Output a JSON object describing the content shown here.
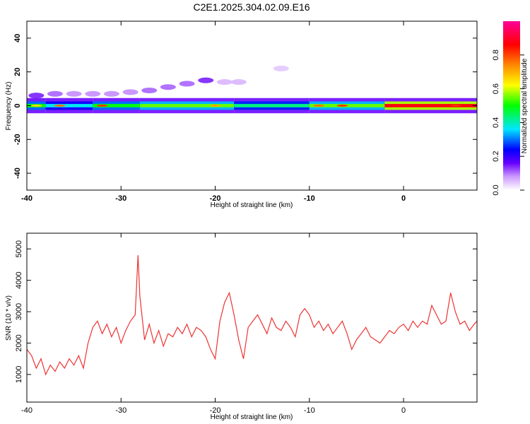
{
  "title": "C2E1.2025.304.02.09.E16",
  "chart_data": [
    {
      "type": "heatmap",
      "xlabel": "Height of straight line (km)",
      "ylabel": "Frequency (Hz)",
      "xlim": [
        -40,
        7.8
      ],
      "ylim": [
        -50,
        50
      ],
      "xticks": [
        -40,
        -30,
        -20,
        -10,
        0
      ],
      "yticks": [
        -40,
        -20,
        0,
        20,
        40
      ],
      "colorbar": {
        "label": "Normalized spectral amplitude",
        "range": [
          0,
          1
        ],
        "ticks": [
          0.0,
          0.2,
          0.4,
          0.6,
          0.8
        ],
        "colors": [
          "#ffffff",
          "#cc99ff",
          "#6600ff",
          "#0000ff",
          "#00e6ff",
          "#00ff00",
          "#ffff00",
          "#ff8800",
          "#ff0000",
          "#ff0099"
        ]
      },
      "band": {
        "center_frequency": 0,
        "segments": [
          {
            "x": [
              -40,
              -38
            ],
            "amplitude": 0.55
          },
          {
            "x": [
              -38,
              -33
            ],
            "amplitude": 0.45
          },
          {
            "x": [
              -33,
              -28
            ],
            "amplitude": 0.55
          },
          {
            "x": [
              -28,
              -18
            ],
            "amplitude": 0.6
          },
          {
            "x": [
              -18,
              -10
            ],
            "amplitude": 0.5
          },
          {
            "x": [
              -10,
              -2
            ],
            "amplitude": 0.6
          },
          {
            "x": [
              -2,
              7.8
            ],
            "amplitude": 0.9
          }
        ],
        "hotspots": [
          {
            "x": -39,
            "amplitude": 0.7
          },
          {
            "x": -36.5,
            "amplitude": 0.8
          },
          {
            "x": -32,
            "amplitude": 0.85
          },
          {
            "x": -20,
            "amplitude": 0.75
          },
          {
            "x": -9,
            "amplitude": 0.8
          },
          {
            "x": -6.5,
            "amplitude": 0.85
          },
          {
            "x": 5.5,
            "amplitude": 0.85
          }
        ]
      },
      "weak_features": [
        {
          "x": -39,
          "y": 6,
          "amplitude": 0.2
        },
        {
          "x": -37,
          "y": 7,
          "amplitude": 0.15
        },
        {
          "x": -35,
          "y": 7,
          "amplitude": 0.12
        },
        {
          "x": -33,
          "y": 7,
          "amplitude": 0.12
        },
        {
          "x": -31,
          "y": 7,
          "amplitude": 0.12
        },
        {
          "x": -29,
          "y": 8,
          "amplitude": 0.12
        },
        {
          "x": -27,
          "y": 9,
          "amplitude": 0.15
        },
        {
          "x": -25,
          "y": 11,
          "amplitude": 0.15
        },
        {
          "x": -23,
          "y": 13,
          "amplitude": 0.15
        },
        {
          "x": -21,
          "y": 15,
          "amplitude": 0.2
        },
        {
          "x": -19,
          "y": 14,
          "amplitude": 0.08
        },
        {
          "x": -17.5,
          "y": 14,
          "amplitude": 0.08
        },
        {
          "x": -13,
          "y": 22,
          "amplitude": 0.06
        }
      ]
    },
    {
      "type": "line",
      "xlabel": "Height of straight line (km)",
      "ylabel": "SNR (10 * v/v)",
      "xlim": [
        -40,
        7.8
      ],
      "ylim": [
        120,
        5500
      ],
      "xticks": [
        -40,
        -30,
        -20,
        -10,
        0
      ],
      "yticks": [
        1000,
        2000,
        3000,
        4000,
        5000
      ],
      "series": [
        {
          "color": "#ee3333",
          "x": [
            -40,
            -39.5,
            -39,
            -38.5,
            -38,
            -37.5,
            -37,
            -36.5,
            -36,
            -35.5,
            -35,
            -34.5,
            -34,
            -33.5,
            -33,
            -32.5,
            -32,
            -31.5,
            -31,
            -30.5,
            -30,
            -29.5,
            -29,
            -28.5,
            -28.2,
            -28,
            -27.5,
            -27,
            -26.5,
            -26,
            -25.5,
            -25,
            -24.5,
            -24,
            -23.5,
            -23,
            -22.5,
            -22,
            -21.5,
            -21,
            -20.5,
            -20,
            -19.5,
            -19,
            -18.5,
            -18,
            -17.5,
            -17,
            -16.5,
            -16,
            -15.5,
            -15,
            -14.5,
            -14,
            -13.5,
            -13,
            -12.5,
            -12,
            -11.5,
            -11,
            -10.5,
            -10,
            -9.5,
            -9,
            -8.5,
            -8,
            -7.5,
            -7,
            -6.5,
            -6,
            -5.5,
            -5,
            -4.5,
            -4,
            -3.5,
            -3,
            -2.5,
            -2,
            -1.5,
            -1,
            -0.5,
            0,
            0.5,
            1,
            1.5,
            2,
            2.5,
            3,
            3.5,
            4,
            4.5,
            5,
            5.5,
            6,
            6.5,
            7,
            7.5,
            7.8
          ],
          "y": [
            1800,
            1600,
            1200,
            1500,
            1000,
            1300,
            1100,
            1400,
            1200,
            1500,
            1300,
            1600,
            1200,
            2000,
            2500,
            2700,
            2300,
            2600,
            2200,
            2500,
            2000,
            2400,
            2700,
            2900,
            4800,
            3500,
            2100,
            2600,
            2000,
            2400,
            1900,
            2300,
            2200,
            2500,
            2300,
            2600,
            2200,
            2500,
            2400,
            2200,
            1800,
            1500,
            2700,
            3300,
            3600,
            2900,
            2100,
            1500,
            2500,
            2700,
            2900,
            2600,
            2300,
            2800,
            2500,
            2400,
            2700,
            2500,
            2200,
            2900,
            3100,
            2900,
            2500,
            2700,
            2400,
            2600,
            2300,
            2500,
            2700,
            2300,
            1800,
            2100,
            2300,
            2500,
            2200,
            2100,
            2000,
            2200,
            2400,
            2300,
            2500,
            2600,
            2400,
            2700,
            2500,
            2700,
            2600,
            3200,
            2900,
            2600,
            2700,
            3600,
            3000,
            2600,
            2700,
            2400,
            2600,
            2700
          ]
        }
      ]
    }
  ]
}
